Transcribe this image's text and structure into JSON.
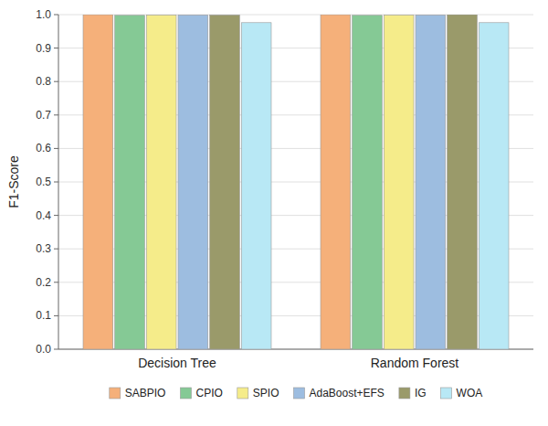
{
  "chart_data": {
    "type": "bar",
    "categories": [
      "Decision Tree",
      "Random Forest"
    ],
    "series": [
      {
        "name": "SABPIO",
        "color": "#F5B07A",
        "values": [
          1.0,
          1.0
        ]
      },
      {
        "name": "CPIO",
        "color": "#85C995",
        "values": [
          0.998,
          0.998
        ]
      },
      {
        "name": "SPIO",
        "color": "#F5EC8A",
        "values": [
          0.999,
          0.999
        ]
      },
      {
        "name": "AdaBoost+EFS",
        "color": "#9DBDE0",
        "values": [
          0.999,
          0.999
        ]
      },
      {
        "name": "IG",
        "color": "#9A9A6A",
        "values": [
          0.999,
          1.0
        ]
      },
      {
        "name": "WOA",
        "color": "#B8E8F5",
        "values": [
          0.976,
          0.976
        ]
      }
    ],
    "y_label": "F1-Score",
    "ylim": [
      0.0,
      1.0
    ],
    "yticks": [
      {
        "value": 0,
        "label": "0.0"
      },
      0.1,
      0.2,
      0.3,
      0.4,
      0.5,
      0.6,
      0.7,
      0.8,
      0.9,
      {
        "value": 1,
        "label": "1.0"
      }
    ],
    "grid": true,
    "legend": "bottom"
  }
}
